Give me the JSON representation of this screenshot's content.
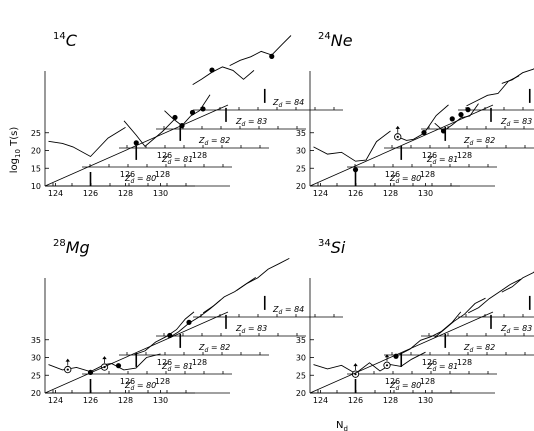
{
  "chart_data": {
    "type": "line",
    "ylabel": "log",
    "ylabel_sub": "10",
    "ylabel_tail": " T(s)",
    "xlabel": "N",
    "xlabel_sub": "d",
    "plane_prefix": "Z",
    "plane_sub": "d",
    "plane_eq": " = ",
    "panels": [
      {
        "mass": "14",
        "symbol": "C",
        "yticks": [
          "10",
          "15",
          "20",
          "25"
        ],
        "ylim": [
          10,
          28
        ],
        "xticks": [
          "124",
          "126",
          "128",
          "130"
        ],
        "planes": [
          {
            "z": "80",
            "curve": [
              [
                123.6,
                22.6
              ],
              [
                124.4,
                22.0
              ],
              [
                125.0,
                21.0
              ],
              [
                126.0,
                18.3
              ],
              [
                127.0,
                23.5
              ],
              [
                128.0,
                26.5
              ]
            ],
            "stem": [
              126.0,
              10
            ],
            "points": [],
            "arrows": []
          },
          {
            "z": "81",
            "curve": [
              [
                125.8,
                23.0
              ],
              [
                126.5,
                19.0
              ],
              [
                127.0,
                15.8
              ],
              [
                128.0,
                20.0
              ],
              [
                128.8,
                24.0
              ]
            ],
            "stem": [
              126.5,
              12
            ],
            "points": [
              [
                126.5,
                16.8
              ]
            ],
            "arrows": []
          },
          {
            "z": "82",
            "curve": [
              [
                126.0,
                20.5
              ],
              [
                126.5,
                18.2
              ],
              [
                127.0,
                16.3
              ],
              [
                127.5,
                19.0
              ],
              [
                128.0,
                20.5
              ],
              [
                128.6,
                25.0
              ]
            ],
            "stem": [
              126.9,
              12
            ],
            "points": [
              [
                126.6,
                18.6
              ],
              [
                127.0,
                16.3
              ],
              [
                127.6,
                20.0
              ],
              [
                128.2,
                21.0
              ]
            ],
            "arrows": []
          },
          {
            "z": "83",
            "curve": [
              [
                125.5,
                22.5
              ],
              [
                126.0,
                24.0
              ],
              [
                126.6,
                26.0
              ],
              [
                127.2,
                27.5
              ],
              [
                127.8,
                26.5
              ],
              [
                128.4,
                24.0
              ],
              [
                129.0,
                26.5
              ]
            ],
            "stem": [
              127.4,
              12
            ],
            "points": [
              [
                126.6,
                26.6
              ]
            ],
            "arrows": []
          },
          {
            "z": "84",
            "curve": [
              [
                125.5,
                22.5
              ],
              [
                126.1,
                24.0
              ],
              [
                126.7,
                25.0
              ],
              [
                127.3,
                26.5
              ],
              [
                127.9,
                25.5
              ],
              [
                128.5,
                28.5
              ],
              [
                129.0,
                31.0
              ]
            ],
            "stem": [
              127.5,
              12
            ],
            "points": [
              [
                127.9,
                25.1
              ]
            ],
            "arrows": []
          }
        ]
      },
      {
        "mass": "24",
        "symbol": "Ne",
        "yticks": [
          "20",
          "25",
          "30",
          "35"
        ],
        "ylim": [
          20,
          38
        ],
        "xticks": [
          "124",
          "126",
          "128",
          "130"
        ],
        "planes": [
          {
            "z": "80",
            "curve": [
              [
                123.6,
                31.0
              ],
              [
                124.4,
                29.0
              ],
              [
                125.2,
                29.5
              ],
              [
                126.0,
                27.0
              ],
              [
                126.6,
                27.3
              ],
              [
                127.2,
                32.5
              ],
              [
                128.0,
                35.5
              ]
            ],
            "stem": [
              126.0,
              20
            ],
            "points": [
              [
                126.0,
                24.6
              ]
            ],
            "arrows": []
          },
          {
            "z": "81",
            "curve": [
              [
                126.3,
                28.5
              ],
              [
                126.8,
                27.5
              ],
              [
                127.2,
                27.8
              ],
              [
                127.8,
                29.5
              ],
              [
                128.5,
                34.5
              ],
              [
                129.2,
                37.5
              ]
            ],
            "stem": [
              126.5,
              22
            ],
            "points": [
              [
                127.8,
                29.7
              ]
            ],
            "arrows": [
              [
                126.3,
                28.5,
                1
              ]
            ]
          },
          {
            "z": "82",
            "curve": [
              [
                126.3,
                27.0
              ],
              [
                126.8,
                24.8
              ],
              [
                127.3,
                26.5
              ],
              [
                127.8,
                28.5
              ],
              [
                128.3,
                29.0
              ],
              [
                128.8,
                32.5
              ]
            ],
            "stem": [
              126.9,
              22
            ],
            "points": [
              [
                126.8,
                24.8
              ],
              [
                127.3,
                28.2
              ],
              [
                127.8,
                29.4
              ],
              [
                128.2,
                30.8
              ]
            ],
            "arrows": []
          },
          {
            "z": "83",
            "curve": [
              [
                126.0,
                26.5
              ],
              [
                126.6,
                28.0
              ],
              [
                127.2,
                29.5
              ],
              [
                127.8,
                30.0
              ],
              [
                128.4,
                33.5
              ],
              [
                129.0,
                35.0
              ]
            ],
            "stem": [
              127.4,
              22
            ],
            "points": [],
            "arrows": []
          },
          {
            "z": "84",
            "curve": [
              [
                125.9,
                27.5
              ],
              [
                126.5,
                28.5
              ],
              [
                127.1,
                30.5
              ],
              [
                127.7,
                31.5
              ],
              [
                128.3,
                33.5
              ],
              [
                128.9,
                36.0
              ]
            ],
            "stem": [
              127.5,
              22
            ],
            "points": [],
            "arrows": []
          }
        ]
      },
      {
        "mass": "28",
        "symbol": "Mg",
        "yticks": [
          "20",
          "25",
          "30",
          "35"
        ],
        "ylim": [
          20,
          38
        ],
        "xticks": [
          "124",
          "126",
          "128",
          "130"
        ],
        "planes": [
          {
            "z": "80",
            "curve": [
              [
                123.6,
                28.0
              ],
              [
                124.4,
                26.5
              ],
              [
                125.2,
                27.2
              ],
              [
                126.0,
                26.0
              ],
              [
                126.8,
                28.0
              ],
              [
                127.2,
                28.3
              ],
              [
                127.9,
                26.5
              ],
              [
                128.6,
                27.0
              ],
              [
                129.2,
                30.0
              ],
              [
                130.0,
                31.0
              ]
            ],
            "stem": [
              126.0,
              20
            ],
            "points": [
              [
                126.0,
                25.8
              ],
              [
                127.6,
                27.7
              ]
            ],
            "arrows": [
              [
                124.7,
                26.6,
                1
              ],
              [
                126.8,
                27.3,
                1
              ]
            ]
          },
          {
            "z": "81",
            "curve": [
              [
                126.4,
                25.5
              ],
              [
                127.0,
                26.5
              ],
              [
                127.6,
                29.0
              ],
              [
                128.2,
                30.5
              ],
              [
                128.8,
                32.5
              ],
              [
                129.3,
                35.5
              ],
              [
                129.8,
                37.5
              ]
            ],
            "stem": [
              126.5,
              22
            ],
            "points": [],
            "arrows": []
          },
          {
            "z": "82",
            "curve": [
              [
                126.3,
                25.0
              ],
              [
                126.8,
                26.5
              ],
              [
                127.4,
                29.0
              ],
              [
                128.0,
                30.8
              ],
              [
                128.6,
                33.0
              ],
              [
                129.2,
                35.5
              ]
            ],
            "stem": [
              126.9,
              22
            ],
            "points": [
              [
                126.3,
                25.5
              ],
              [
                127.4,
                29.2
              ]
            ],
            "arrows": []
          },
          {
            "z": "83",
            "curve": [
              [
                126.1,
                26.5
              ],
              [
                126.7,
                28.5
              ],
              [
                127.3,
                31.0
              ],
              [
                127.9,
                32.5
              ],
              [
                128.5,
                34.5
              ],
              [
                129.1,
                36.5
              ]
            ],
            "stem": [
              127.4,
              22
            ],
            "points": [],
            "arrows": []
          },
          {
            "z": "84",
            "curve": [
              [
                125.9,
                27.5
              ],
              [
                126.5,
                29.5
              ],
              [
                127.1,
                31.0
              ],
              [
                127.7,
                33.5
              ],
              [
                128.3,
                35.0
              ],
              [
                128.9,
                36.5
              ]
            ],
            "stem": [
              127.5,
              22
            ],
            "points": [],
            "arrows": []
          }
        ]
      },
      {
        "mass": "34",
        "symbol": "Si",
        "yticks": [
          "20",
          "25",
          "30",
          "35"
        ],
        "ylim": [
          20,
          38
        ],
        "xticks": [
          "124",
          "126",
          "128",
          "130"
        ],
        "planes": [
          {
            "z": "80",
            "curve": [
              [
                123.6,
                28.0
              ],
              [
                124.4,
                26.8
              ],
              [
                125.2,
                27.8
              ],
              [
                126.0,
                25.5
              ],
              [
                126.8,
                28.5
              ],
              [
                127.4,
                26.2
              ],
              [
                128.0,
                28.0
              ],
              [
                128.6,
                27.5
              ],
              [
                129.2,
                29.5
              ],
              [
                130.0,
                31.5
              ]
            ],
            "stem": [
              126.0,
              20
            ],
            "points": [],
            "arrows": [
              [
                126.0,
                25.3,
                1
              ],
              [
                127.8,
                27.8,
                1
              ]
            ]
          },
          {
            "z": "81",
            "curve": [
              [
                126.4,
                25.5
              ],
              [
                127.0,
                27.0
              ],
              [
                127.6,
                29.5
              ],
              [
                128.2,
                30.5
              ],
              [
                128.8,
                32.0
              ],
              [
                129.4,
                34.5
              ],
              [
                129.9,
                37.5
              ]
            ],
            "stem": [
              126.5,
              22
            ],
            "points": [
              [
                126.2,
                25.0
              ]
            ],
            "arrows": []
          },
          {
            "z": "82",
            "curve": [
              [
                126.3,
                25.0
              ],
              [
                126.8,
                27.0
              ],
              [
                127.4,
                29.5
              ],
              [
                128.0,
                31.5
              ],
              [
                128.6,
                34.5
              ],
              [
                129.2,
                36.0
              ]
            ],
            "stem": [
              126.9,
              22
            ],
            "points": [],
            "arrows": []
          },
          {
            "z": "83",
            "curve": [
              [
                126.1,
                26.5
              ],
              [
                126.7,
                28.0
              ],
              [
                127.3,
                30.5
              ],
              [
                127.9,
                32.5
              ],
              [
                128.5,
                34.5
              ],
              [
                129.1,
                36.0
              ]
            ],
            "stem": [
              127.4,
              22
            ],
            "points": [],
            "arrows": []
          },
          {
            "z": "84",
            "curve": [
              [
                125.9,
                27.0
              ],
              [
                126.5,
                28.5
              ],
              [
                127.1,
                31.0
              ],
              [
                127.7,
                32.5
              ],
              [
                128.3,
                35.0
              ],
              [
                128.9,
                37.0
              ]
            ],
            "stem": [
              127.5,
              22
            ],
            "points": [],
            "arrows": []
          }
        ]
      }
    ]
  }
}
